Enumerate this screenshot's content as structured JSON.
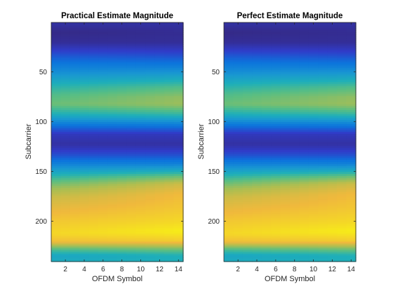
{
  "chart_data": [
    {
      "type": "heatmap",
      "title": "Practical Estimate Magnitude",
      "xlabel": "OFDM Symbol",
      "ylabel": "Subcarrier",
      "xlim": [
        0.5,
        14.5
      ],
      "ylim": [
        0.5,
        240.5
      ],
      "y_reversed": true,
      "xticks": [
        2,
        4,
        6,
        8,
        10,
        12,
        14
      ],
      "yticks": [
        50,
        100,
        150,
        200
      ],
      "grid": false,
      "colormap": "parula",
      "description_values": {
        "band_profile_start": [
          [
            1,
            0.05
          ],
          [
            10,
            0.0
          ],
          [
            20,
            0.03
          ],
          [
            35,
            0.2
          ],
          [
            50,
            0.35
          ],
          [
            62,
            0.5
          ],
          [
            72,
            0.6
          ],
          [
            82,
            0.65
          ],
          [
            92,
            0.5
          ],
          [
            102,
            0.28
          ],
          [
            112,
            0.1
          ],
          [
            122,
            0.05
          ],
          [
            132,
            0.15
          ],
          [
            142,
            0.3
          ],
          [
            150,
            0.45
          ],
          [
            158,
            0.6
          ],
          [
            166,
            0.72
          ],
          [
            175,
            0.8
          ],
          [
            188,
            0.86
          ],
          [
            200,
            0.9
          ],
          [
            212,
            0.93
          ],
          [
            220,
            0.88
          ],
          [
            228,
            0.6
          ],
          [
            234,
            0.45
          ],
          [
            240,
            0.48
          ]
        ],
        "band_profile_end": [
          [
            1,
            0.05
          ],
          [
            10,
            0.02
          ],
          [
            20,
            0.03
          ],
          [
            32,
            0.15
          ],
          [
            45,
            0.3
          ],
          [
            55,
            0.45
          ],
          [
            65,
            0.6
          ],
          [
            75,
            0.7
          ],
          [
            82,
            0.72
          ],
          [
            92,
            0.55
          ],
          [
            102,
            0.3
          ],
          [
            112,
            0.1
          ],
          [
            122,
            0.05
          ],
          [
            132,
            0.15
          ],
          [
            142,
            0.3
          ],
          [
            148,
            0.45
          ],
          [
            155,
            0.65
          ],
          [
            162,
            0.8
          ],
          [
            172,
            0.87
          ],
          [
            188,
            0.9
          ],
          [
            200,
            0.93
          ],
          [
            210,
            0.97
          ],
          [
            220,
            0.9
          ],
          [
            228,
            0.65
          ],
          [
            234,
            0.5
          ],
          [
            240,
            0.5
          ]
        ]
      }
    },
    {
      "type": "heatmap",
      "title": "Perfect Estimate Magnitude",
      "xlabel": "OFDM Symbol",
      "ylabel": "Subcarrier",
      "xlim": [
        0.5,
        14.5
      ],
      "ylim": [
        0.5,
        240.5
      ],
      "y_reversed": true,
      "xticks": [
        2,
        4,
        6,
        8,
        10,
        12,
        14
      ],
      "yticks": [
        50,
        100,
        150,
        200
      ],
      "grid": false,
      "colormap": "parula",
      "description_values": {
        "band_profile_start": [
          [
            1,
            0.05
          ],
          [
            10,
            0.0
          ],
          [
            20,
            0.03
          ],
          [
            35,
            0.2
          ],
          [
            50,
            0.35
          ],
          [
            62,
            0.5
          ],
          [
            72,
            0.6
          ],
          [
            82,
            0.65
          ],
          [
            92,
            0.5
          ],
          [
            102,
            0.28
          ],
          [
            112,
            0.1
          ],
          [
            122,
            0.05
          ],
          [
            132,
            0.15
          ],
          [
            142,
            0.3
          ],
          [
            150,
            0.45
          ],
          [
            158,
            0.6
          ],
          [
            166,
            0.72
          ],
          [
            175,
            0.8
          ],
          [
            188,
            0.86
          ],
          [
            200,
            0.9
          ],
          [
            212,
            0.93
          ],
          [
            220,
            0.88
          ],
          [
            228,
            0.6
          ],
          [
            234,
            0.45
          ],
          [
            240,
            0.48
          ]
        ],
        "band_profile_end": [
          [
            1,
            0.05
          ],
          [
            10,
            0.02
          ],
          [
            20,
            0.03
          ],
          [
            32,
            0.15
          ],
          [
            45,
            0.3
          ],
          [
            55,
            0.45
          ],
          [
            65,
            0.6
          ],
          [
            75,
            0.7
          ],
          [
            82,
            0.72
          ],
          [
            92,
            0.55
          ],
          [
            102,
            0.3
          ],
          [
            112,
            0.1
          ],
          [
            122,
            0.05
          ],
          [
            132,
            0.15
          ],
          [
            142,
            0.3
          ],
          [
            148,
            0.45
          ],
          [
            155,
            0.65
          ],
          [
            162,
            0.8
          ],
          [
            172,
            0.87
          ],
          [
            188,
            0.9
          ],
          [
            200,
            0.93
          ],
          [
            210,
            0.97
          ],
          [
            220,
            0.9
          ],
          [
            228,
            0.65
          ],
          [
            234,
            0.5
          ],
          [
            240,
            0.5
          ]
        ]
      }
    }
  ]
}
